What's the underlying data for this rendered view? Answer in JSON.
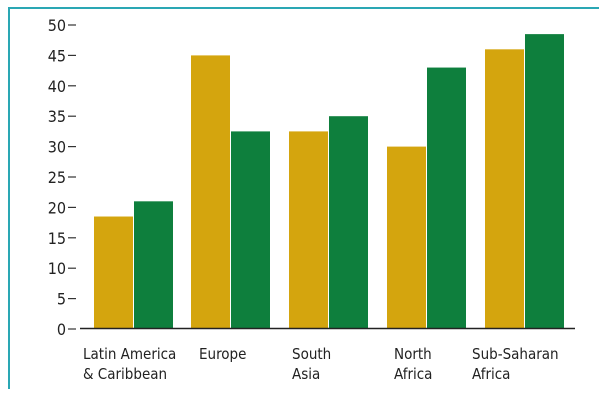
{
  "chart_data": {
    "type": "bar",
    "categories": [
      [
        "Latin America",
        "& Caribbean"
      ],
      [
        "Europe"
      ],
      [
        "South",
        "Asia"
      ],
      [
        "North",
        "Africa"
      ],
      [
        "Sub-Saharan",
        "Africa"
      ]
    ],
    "series": [
      {
        "color": "#d4a50e",
        "values": [
          18.5,
          45,
          32.5,
          30,
          46
        ]
      },
      {
        "color": "#0e7f3d",
        "values": [
          21,
          32.5,
          35,
          43,
          48.5
        ]
      }
    ],
    "ylim": [
      0,
      50
    ],
    "yticks": [
      "50",
      "45",
      "40",
      "35",
      "30",
      "25",
      "20",
      "15",
      "10",
      "5",
      "0"
    ],
    "ytick_values": [
      50,
      45,
      40,
      35,
      30,
      25,
      20,
      15,
      10,
      5,
      0
    ],
    "grid": false,
    "legend": "none"
  }
}
